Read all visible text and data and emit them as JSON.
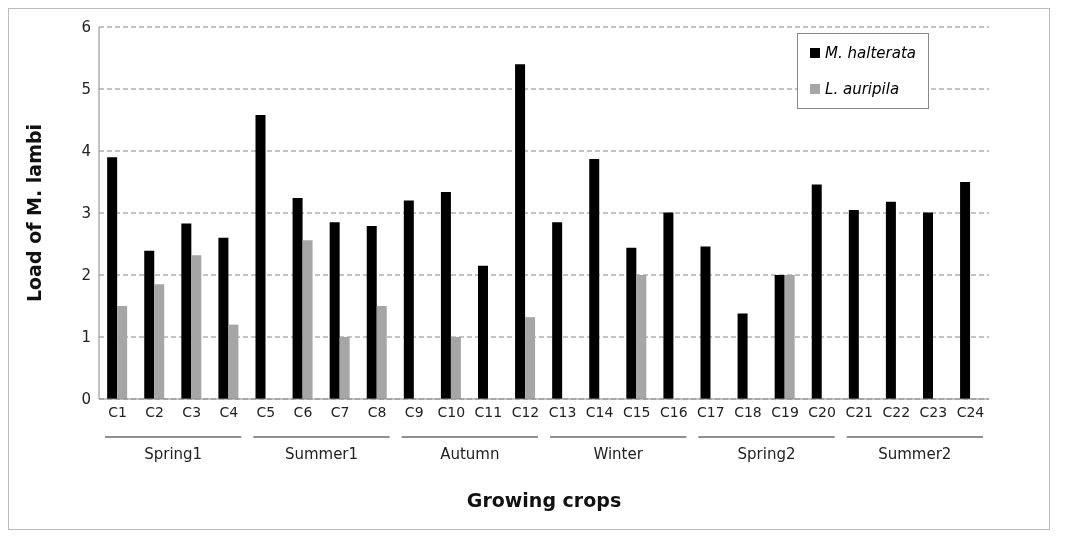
{
  "chart_data": {
    "type": "bar",
    "xlabel": "Growing crops",
    "ylabel": "Load of M. lambi",
    "categories": [
      "C1",
      "C2",
      "C3",
      "C4",
      "C5",
      "C6",
      "C7",
      "C8",
      "C9",
      "C10",
      "C11",
      "C12",
      "C13",
      "C14",
      "C15",
      "C16",
      "C17",
      "C18",
      "C19",
      "C20",
      "C21",
      "C22",
      "C23",
      "C24"
    ],
    "series": [
      {
        "name": "M. halterata",
        "color": "#000000",
        "values": [
          3.9,
          2.39,
          2.83,
          2.6,
          4.58,
          3.24,
          2.85,
          2.79,
          3.2,
          3.34,
          2.15,
          5.4,
          2.85,
          3.87,
          2.44,
          3.01,
          2.46,
          1.38,
          2.0,
          3.46,
          3.05,
          3.18,
          3.01,
          3.5
        ]
      },
      {
        "name": "L. auripila",
        "color": "#a6a6a6",
        "values": [
          1.5,
          1.85,
          2.32,
          1.2,
          null,
          2.56,
          1.0,
          1.5,
          null,
          1.0,
          null,
          1.32,
          null,
          null,
          2.0,
          null,
          null,
          null,
          2.0,
          null,
          null,
          null,
          null,
          null
        ]
      }
    ],
    "annotations": [
      "Spring1",
      "Summer1",
      "Autumn",
      "Winter",
      "Spring2",
      "Summer2"
    ],
    "ylim": [
      0,
      6
    ],
    "yticks": [
      0,
      1,
      2,
      3,
      4,
      5,
      6
    ],
    "grid": "y",
    "legend": "top right"
  }
}
